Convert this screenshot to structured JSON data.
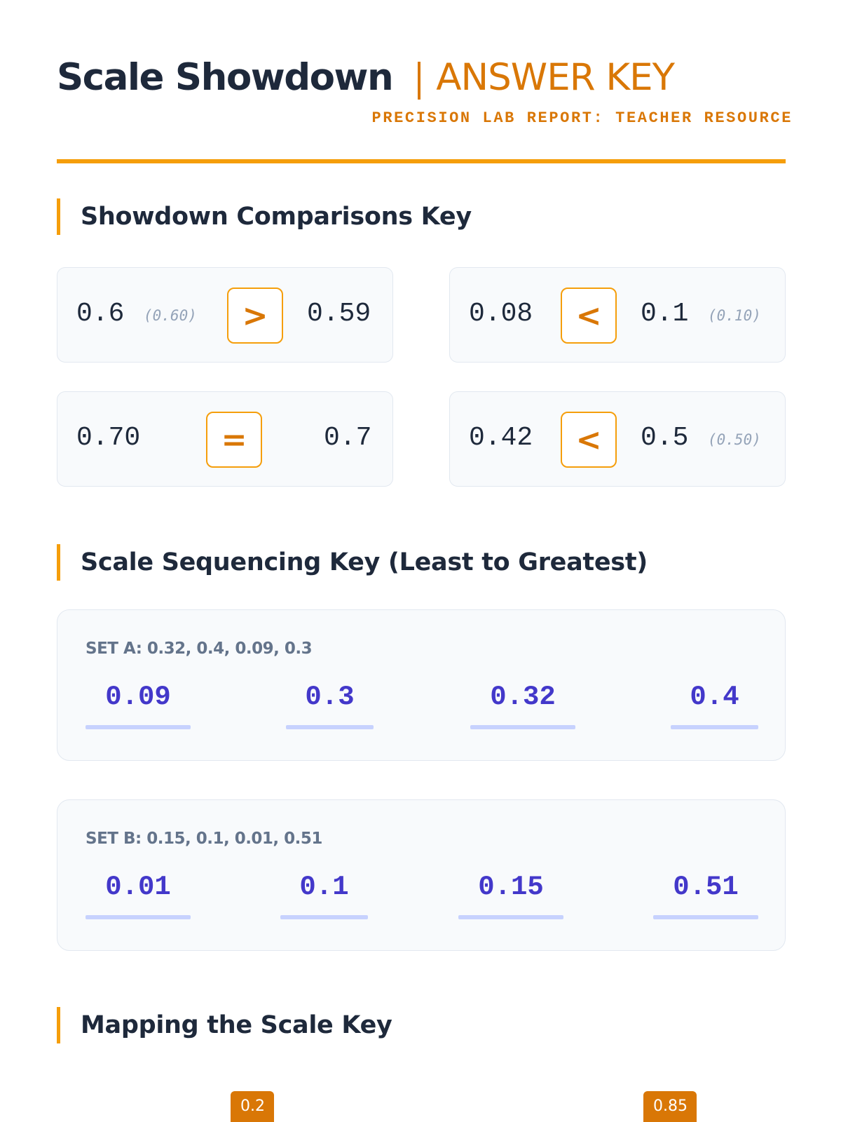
{
  "header": {
    "title": "Scale Showdown",
    "title_key": "ANSWER KEY",
    "subtitle": "PRECISION LAB REPORT: TEACHER RESOURCE"
  },
  "sections": {
    "comparisons": "Showdown Comparisons Key",
    "sequencing": "Scale Sequencing Key (Least to Greatest)",
    "mapping": "Mapping the Scale Key"
  },
  "comparisons": [
    {
      "left": "0.6",
      "left_hint": "(0.60)",
      "symbol": ">",
      "right": "0.59",
      "right_hint": ""
    },
    {
      "left": "0.08",
      "left_hint": "",
      "symbol": "<",
      "right": "0.1",
      "right_hint": "(0.10)"
    },
    {
      "left": "0.70",
      "left_hint": "",
      "symbol": "=",
      "right": "0.7",
      "right_hint": ""
    },
    {
      "left": "0.42",
      "left_hint": "",
      "symbol": "<",
      "right": "0.5",
      "right_hint": "(0.50)"
    }
  ],
  "sequences": [
    {
      "label": "SET A: 0.32, 0.4, 0.09, 0.3",
      "ordered": [
        "0.09",
        "0.3",
        "0.32",
        "0.4"
      ]
    },
    {
      "label": "SET B: 0.15, 0.1, 0.01, 0.51",
      "ordered": [
        "0.01",
        "0.1",
        "0.15",
        "0.51"
      ]
    }
  ],
  "mapping": {
    "markers": [
      "0.2",
      "0.85"
    ]
  },
  "colors": {
    "accent": "#f59e0b",
    "accent_dark": "#d97706",
    "answer": "#4338ca",
    "answer_line": "#c7d2fe",
    "text": "#1e293b",
    "muted": "#94a3b8"
  }
}
